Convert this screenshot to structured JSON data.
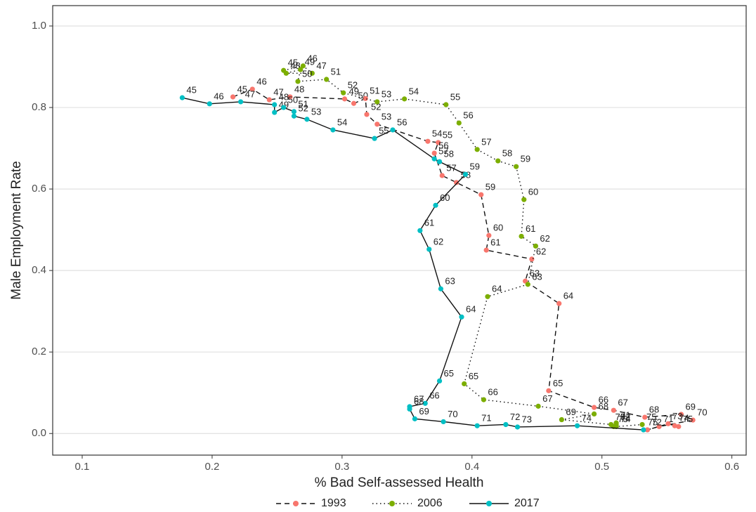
{
  "chart_data": {
    "type": "connected_scatter",
    "x_label": "% Bad Self-assessed Health",
    "y_label": "Male Employment Rate",
    "xlim": [
      0.0773,
      0.611
    ],
    "ylim": [
      -0.053,
      1.05
    ],
    "xticks": [
      0.1,
      0.2,
      0.3,
      0.4,
      0.5,
      0.6
    ],
    "yticks": [
      {
        "value": 0,
        "label": "0.0"
      },
      0.2,
      0.4,
      0.6,
      0.8,
      {
        "value": 1,
        "label": "1.0"
      }
    ],
    "grid": true,
    "legend": "bottom",
    "point_labels": [
      45,
      46,
      47,
      48,
      49,
      50,
      51,
      52,
      53,
      54,
      55,
      56,
      57,
      58,
      59,
      60,
      61,
      62,
      63,
      64,
      65,
      66,
      67,
      68,
      69,
      70,
      71,
      72,
      73,
      74,
      75
    ],
    "series": [
      {
        "name": "1993",
        "color": "#F8766D",
        "dash": "dashed",
        "x": [
          0.216,
          0.231,
          0.244,
          0.26,
          0.302,
          0.309,
          0.318,
          0.319,
          0.327,
          0.366,
          0.374,
          0.371,
          0.377,
          0.388,
          0.407,
          0.413,
          0.411,
          0.446,
          0.441,
          0.467,
          0.459,
          0.494,
          0.509,
          0.533,
          0.561,
          0.57,
          0.544,
          0.535,
          0.551,
          0.556,
          0.559
        ],
        "values": [
          0.826,
          0.845,
          0.819,
          0.826,
          0.821,
          0.81,
          0.822,
          0.783,
          0.759,
          0.717,
          0.714,
          0.688,
          0.633,
          0.616,
          0.586,
          0.486,
          0.45,
          0.428,
          0.374,
          0.319,
          0.105,
          0.064,
          0.057,
          0.04,
          0.047,
          0.033,
          0.017,
          0.009,
          0.024,
          0.019,
          0.017
        ]
      },
      {
        "name": "2006",
        "color": "#7CAE00",
        "dash": "dotted",
        "x": [
          0.255,
          0.27,
          0.277,
          0.257,
          0.268,
          0.266,
          0.288,
          0.301,
          0.327,
          0.348,
          0.38,
          0.39,
          0.404,
          0.42,
          0.434,
          0.44,
          0.438,
          0.449,
          0.443,
          0.412,
          0.394,
          0.409,
          0.451,
          0.494,
          0.469,
          0.507,
          0.511,
          0.511,
          0.509,
          0.511,
          0.531
        ],
        "values": [
          0.891,
          0.902,
          0.884,
          0.884,
          0.893,
          0.864,
          0.869,
          0.836,
          0.814,
          0.821,
          0.807,
          0.762,
          0.697,
          0.669,
          0.655,
          0.574,
          0.484,
          0.46,
          0.366,
          0.336,
          0.122,
          0.083,
          0.067,
          0.048,
          0.034,
          0.022,
          0.026,
          0.022,
          0.017,
          0.017,
          0.022
        ]
      },
      {
        "name": "2017",
        "color": "#00BFC4",
        "dash": "solid",
        "x": [
          0.177,
          0.198,
          0.222,
          0.248,
          0.248,
          0.255,
          0.263,
          0.263,
          0.273,
          0.293,
          0.325,
          0.339,
          0.371,
          0.375,
          0.395,
          0.372,
          0.36,
          0.367,
          0.376,
          0.392,
          0.375,
          0.364,
          0.352,
          0.352,
          0.356,
          0.378,
          0.404,
          0.426,
          0.435,
          0.481,
          0.532
        ],
        "values": [
          0.824,
          0.809,
          0.814,
          0.807,
          0.788,
          0.8,
          0.79,
          0.779,
          0.771,
          0.745,
          0.724,
          0.745,
          0.674,
          0.667,
          0.636,
          0.56,
          0.498,
          0.452,
          0.355,
          0.286,
          0.129,
          0.074,
          0.066,
          0.06,
          0.036,
          0.029,
          0.019,
          0.022,
          0.016,
          0.019,
          0.009
        ]
      }
    ]
  }
}
